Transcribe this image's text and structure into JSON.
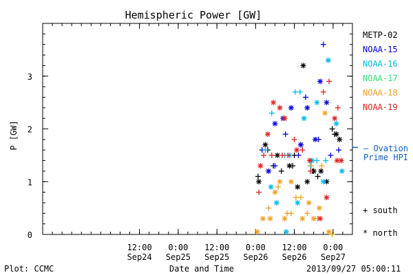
{
  "chart_data": {
    "type": "scatter",
    "title": "Hemispheric Power [GW]",
    "ylabel": "P [GW]",
    "xlabel": "Date and Time",
    "ylim": [
      0,
      4
    ],
    "xlim": [
      "2013-09-23T06:00",
      "2013-09-27T06:00"
    ],
    "yticks": [
      0,
      1,
      2,
      3
    ],
    "xticks": [
      {
        "t": "2013-09-24T12:00",
        "line1": "12:00",
        "line2": "Sep24"
      },
      {
        "t": "2013-09-25T00:00",
        "line1": "0:00",
        "line2": "Sep25"
      },
      {
        "t": "2013-09-25T12:00",
        "line1": "12:00",
        "line2": "Sep25"
      },
      {
        "t": "2013-09-26T00:00",
        "line1": "0:00",
        "line2": "Sep26"
      },
      {
        "t": "2013-09-26T12:00",
        "line1": "12:00",
        "line2": "Sep26"
      },
      {
        "t": "2013-09-27T00:00",
        "line1": "0:00",
        "line2": "Sep27"
      }
    ],
    "series": [
      {
        "name": "METP-02",
        "color": "#000000",
        "south": [
          [
            "2013-09-26T00:45",
            1.1
          ],
          [
            "2013-09-26T03:45",
            1.6
          ],
          [
            "2013-09-26T05:30",
            1.3
          ],
          [
            "2013-09-26T08:00",
            1.2
          ],
          [
            "2013-09-26T11:30",
            1.3
          ],
          [
            "2013-09-26T12:00",
            1.5
          ],
          [
            "2013-09-26T14:00",
            1.7
          ],
          [
            "2013-09-26T17:45",
            1.2
          ],
          [
            "2013-09-26T19:15",
            1.1
          ],
          [
            "2013-09-26T23:45",
            2.0
          ],
          [
            "2013-09-27T00:30",
            1.9
          ]
        ],
        "north": [
          [
            "2013-09-26T01:00",
            1.0
          ],
          [
            "2013-09-26T03:00",
            1.7
          ],
          [
            "2013-09-26T06:45",
            1.5
          ],
          [
            "2013-09-26T10:30",
            1.3
          ],
          [
            "2013-09-26T13:00",
            0.9
          ],
          [
            "2013-09-26T14:45",
            3.2
          ],
          [
            "2013-09-26T16:00",
            1.0
          ],
          [
            "2013-09-26T18:00",
            1.2
          ],
          [
            "2013-09-26T20:15",
            1.2
          ],
          [
            "2013-09-26T22:00",
            1.0
          ],
          [
            "2013-09-27T01:00",
            1.9
          ],
          [
            "2013-09-27T02:00",
            1.8
          ]
        ]
      },
      {
        "name": "NOAA-15",
        "color": "#0000e0",
        "south": [
          [
            "2013-09-26T02:00",
            1.6
          ],
          [
            "2013-09-26T06:00",
            1.3
          ],
          [
            "2013-09-26T09:15",
            1.9
          ],
          [
            "2013-09-26T13:15",
            1.5
          ],
          [
            "2013-09-26T15:30",
            2.6
          ],
          [
            "2013-09-26T19:30",
            1.8
          ],
          [
            "2013-09-26T21:00",
            3.6
          ],
          [
            "2013-09-26T23:15",
            1.5
          ],
          [
            "2013-09-27T01:45",
            1.6
          ]
        ],
        "north": [
          [
            "2013-09-26T04:00",
            1.2
          ],
          [
            "2013-09-26T06:00",
            2.1
          ],
          [
            "2013-09-26T08:30",
            2.2
          ],
          [
            "2013-09-26T11:00",
            2.4
          ],
          [
            "2013-09-26T14:00",
            1.7
          ],
          [
            "2013-09-26T16:00",
            2.4
          ],
          [
            "2013-09-26T18:30",
            1.8
          ],
          [
            "2013-09-26T20:00",
            2.9
          ],
          [
            "2013-09-26T22:00",
            2.5
          ]
        ]
      },
      {
        "name": "NOAA-16",
        "color": "#00b8e8",
        "south": [
          [
            "2013-09-26T03:00",
            1.6
          ],
          [
            "2013-09-26T05:00",
            2.3
          ],
          [
            "2013-09-26T09:00",
            1.5
          ],
          [
            "2013-09-26T12:15",
            2.7
          ],
          [
            "2013-09-26T13:45",
            2.7
          ],
          [
            "2013-09-26T17:00",
            1.3
          ],
          [
            "2013-09-26T19:00",
            1.4
          ],
          [
            "2013-09-26T21:45",
            1.4
          ]
        ],
        "north": [
          [
            "2013-09-26T04:45",
            0.9
          ],
          [
            "2013-09-26T06:30",
            0.6
          ],
          [
            "2013-09-26T09:30",
            0.05
          ],
          [
            "2013-09-26T10:30",
            1.5
          ],
          [
            "2013-09-26T13:00",
            0.6
          ],
          [
            "2013-09-26T15:00",
            2.2
          ],
          [
            "2013-09-26T17:30",
            1.4
          ],
          [
            "2013-09-26T19:00",
            2.5
          ],
          [
            "2013-09-26T21:00",
            1.0
          ],
          [
            "2013-09-26T22:30",
            3.3
          ],
          [
            "2013-09-27T01:00",
            2.1
          ],
          [
            "2013-09-27T02:45",
            1.2
          ]
        ]
      },
      {
        "name": "NOAA-17",
        "color": "#30e070",
        "south": [],
        "north": []
      },
      {
        "name": "NOAA-18",
        "color": "#f0a020",
        "south": [
          [
            "2013-09-26T04:00",
            0.5
          ],
          [
            "2013-09-26T07:00",
            0.9
          ],
          [
            "2013-09-26T09:45",
            0.4
          ],
          [
            "2013-09-26T11:00",
            0.4
          ],
          [
            "2013-09-26T12:30",
            0.7
          ],
          [
            "2013-09-26T14:00",
            0.7
          ],
          [
            "2013-09-26T16:00",
            0.4
          ],
          [
            "2013-09-26T17:15",
            1.3
          ],
          [
            "2013-09-26T19:15",
            0.3
          ],
          [
            "2013-09-26T20:30",
            1.3
          ],
          [
            "2013-09-26T23:45",
            0.0
          ]
        ],
        "north": [
          [
            "2013-09-26T00:30",
            0.05
          ],
          [
            "2013-09-26T02:15",
            0.3
          ],
          [
            "2013-09-26T04:30",
            0.3
          ],
          [
            "2013-09-26T06:00",
            0.8
          ],
          [
            "2013-09-26T07:30",
            1.0
          ],
          [
            "2013-09-26T09:00",
            0.3
          ],
          [
            "2013-09-26T11:00",
            1.0
          ],
          [
            "2013-09-26T14:30",
            0.3
          ],
          [
            "2013-09-26T16:30",
            0.6
          ],
          [
            "2013-09-26T18:00",
            0.3
          ],
          [
            "2013-09-26T19:45",
            0.5
          ],
          [
            "2013-09-26T21:30",
            2.3
          ],
          [
            "2013-09-26T22:45",
            0.05
          ]
        ]
      },
      {
        "name": "NOAA-19",
        "color": "#e02020",
        "south": [
          [
            "2013-09-26T01:00",
            0.8
          ],
          [
            "2013-09-26T02:30",
            1.5
          ],
          [
            "2013-09-26T05:00",
            1.5
          ],
          [
            "2013-09-26T08:15",
            1.5
          ],
          [
            "2013-09-26T10:00",
            1.5
          ],
          [
            "2013-09-26T12:00",
            1.8
          ],
          [
            "2013-09-26T14:30",
            1.6
          ],
          [
            "2013-09-26T17:00",
            1.2
          ],
          [
            "2013-09-26T21:00",
            2.7
          ],
          [
            "2013-09-26T22:45",
            2.9
          ],
          [
            "2013-09-27T01:30",
            2.4
          ]
        ],
        "north": [
          [
            "2013-09-26T01:30",
            1.3
          ],
          [
            "2013-09-26T03:45",
            1.9
          ],
          [
            "2013-09-26T05:30",
            2.5
          ],
          [
            "2013-09-26T07:30",
            2.4
          ],
          [
            "2013-09-26T09:00",
            2.2
          ],
          [
            "2013-09-26T12:45",
            1.6
          ],
          [
            "2013-09-26T16:45",
            1.4
          ],
          [
            "2013-09-26T20:00",
            0.3
          ],
          [
            "2013-09-26T22:00",
            0.7
          ],
          [
            "2013-09-27T00:30",
            2.2
          ],
          [
            "2013-09-27T01:15",
            1.4
          ],
          [
            "2013-09-27T02:30",
            1.4
          ]
        ]
      }
    ],
    "ovation_value": 1.65,
    "ovation_label_line1": "– Ovation",
    "ovation_label_line2": "Prime HPI",
    "ovation_color": "#1060c0",
    "marker_legend": {
      "south": "+ south",
      "north": "* north"
    },
    "footer_left": "Plot: CCMC",
    "footer_right": "2013/09/27 05:00:11"
  }
}
